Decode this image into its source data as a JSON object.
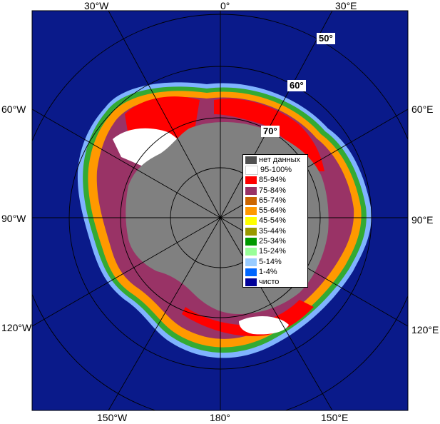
{
  "map": {
    "longitude_labels": {
      "top": [
        "30°W",
        "0°",
        "30°E"
      ],
      "left": [
        "60°W",
        "90°W",
        "120°W"
      ],
      "right": [
        "60°E",
        "90°E",
        "120°E"
      ],
      "bottom": [
        "150°W",
        "180°",
        "150°E"
      ]
    },
    "latitude_labels": [
      "50°",
      "60°",
      "70°"
    ],
    "legend": [
      {
        "label": "нет данных",
        "color": "#505050"
      },
      {
        "label": "95-100%",
        "color": "#ffffff"
      },
      {
        "label": "85-94%",
        "color": "#ff0000"
      },
      {
        "label": "75-84%",
        "color": "#993366"
      },
      {
        "label": "65-74%",
        "color": "#cc6600"
      },
      {
        "label": "55-64%",
        "color": "#ff9900"
      },
      {
        "label": "45-54%",
        "color": "#ffff00"
      },
      {
        "label": "35-44%",
        "color": "#999900"
      },
      {
        "label": "25-34%",
        "color": "#009900"
      },
      {
        "label": "15-24%",
        "color": "#99ff99"
      },
      {
        "label": "5-14%",
        "color": "#99ccff"
      },
      {
        "label": "1-4%",
        "color": "#0066ff"
      },
      {
        "label": "чисто",
        "color": "#000099"
      }
    ],
    "colors": {
      "ocean": "#0a1a8a",
      "continent": "#808080",
      "land_other": "#7a8a9a"
    }
  }
}
